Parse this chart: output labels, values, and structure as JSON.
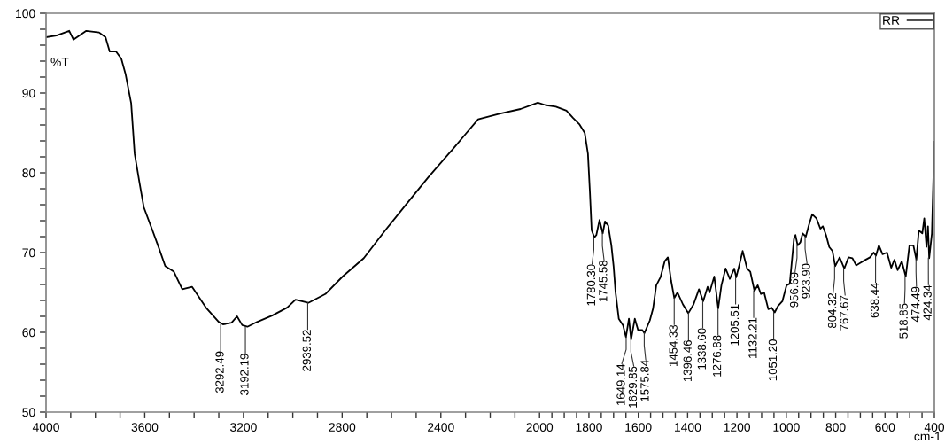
{
  "chart_data": {
    "type": "line",
    "ylabel": "%T",
    "xlabel": "cm-1",
    "xlim": [
      4000,
      400
    ],
    "ylim": [
      50,
      100
    ],
    "xticks": [
      4000,
      {
        "value": 3900,
        "label": null
      },
      {
        "value": 3800,
        "label": null
      },
      {
        "value": 3700,
        "label": null
      },
      3600,
      {
        "value": 3500,
        "label": null
      },
      {
        "value": 3400,
        "label": null
      },
      {
        "value": 3300,
        "label": null
      },
      3200,
      {
        "value": 3100,
        "label": null
      },
      {
        "value": 3000,
        "label": null
      },
      {
        "value": 2900,
        "label": null
      },
      2800,
      {
        "value": 2700,
        "label": null
      },
      {
        "value": 2600,
        "label": null
      },
      {
        "value": 2500,
        "label": null
      },
      2400,
      {
        "value": 2300,
        "label": null
      },
      {
        "value": 2200,
        "label": null
      },
      {
        "value": 2100,
        "label": null
      },
      2000,
      {
        "value": 1950,
        "label": null
      },
      {
        "value": 1900,
        "label": null
      },
      {
        "value": 1850,
        "label": null
      },
      1800,
      {
        "value": 1750,
        "label": null
      },
      {
        "value": 1700,
        "label": null
      },
      {
        "value": 1650,
        "label": null
      },
      1600,
      {
        "value": 1550,
        "label": null
      },
      {
        "value": 1500,
        "label": null
      },
      {
        "value": 1450,
        "label": null
      },
      1400,
      {
        "value": 1350,
        "label": null
      },
      {
        "value": 1300,
        "label": null
      },
      {
        "value": 1250,
        "label": null
      },
      1200,
      {
        "value": 1150,
        "label": null
      },
      {
        "value": 1100,
        "label": null
      },
      {
        "value": 1050,
        "label": null
      },
      1000,
      {
        "value": 950,
        "label": null
      },
      {
        "value": 900,
        "label": null
      },
      {
        "value": 850,
        "label": null
      },
      800,
      {
        "value": 750,
        "label": null
      },
      {
        "value": 700,
        "label": null
      },
      {
        "value": 650,
        "label": null
      },
      600,
      {
        "value": 550,
        "label": null
      },
      {
        "value": 500,
        "label": null
      },
      {
        "value": 450,
        "label": null
      },
      400
    ],
    "yticks": [
      50,
      {
        "value": 52,
        "label": null
      },
      {
        "value": 54,
        "label": null
      },
      {
        "value": 56,
        "label": null
      },
      {
        "value": 58,
        "label": null
      },
      60,
      {
        "value": 62,
        "label": null
      },
      {
        "value": 64,
        "label": null
      },
      {
        "value": 66,
        "label": null
      },
      {
        "value": 68,
        "label": null
      },
      70,
      {
        "value": 72,
        "label": null
      },
      {
        "value": 74,
        "label": null
      },
      {
        "value": 76,
        "label": null
      },
      {
        "value": 78,
        "label": null
      },
      80,
      {
        "value": 82,
        "label": null
      },
      {
        "value": 84,
        "label": null
      },
      {
        "value": 86,
        "label": null
      },
      {
        "value": 88,
        "label": null
      },
      90,
      {
        "value": 92,
        "label": null
      },
      {
        "value": 94,
        "label": null
      },
      {
        "value": 96,
        "label": null
      },
      {
        "value": 98,
        "label": null
      },
      100
    ],
    "legend": "top right",
    "marker": "none",
    "line_style": "solid",
    "grid": false,
    "series": [
      {
        "name": "RR",
        "color": "#000000",
        "x": [
          4000,
          3958,
          3906,
          3889,
          3837,
          3785,
          3759,
          3742,
          3716,
          3695,
          3678,
          3655,
          3641,
          3621,
          3604,
          3569,
          3543,
          3517,
          3482,
          3448,
          3408,
          3352,
          3300,
          3283,
          3248,
          3226,
          3205,
          3184,
          3145,
          3084,
          3023,
          2989,
          2937,
          2868,
          2798,
          2712,
          2625,
          2539,
          2452,
          2348,
          2296,
          2249,
          2163,
          2077,
          2007,
          1977,
          1934,
          1891,
          1865,
          1839,
          1817,
          1804,
          1796,
          1789,
          1778,
          1770,
          1757,
          1744,
          1735,
          1722,
          1709,
          1700,
          1692,
          1679,
          1662,
          1650,
          1638,
          1629,
          1614,
          1601,
          1584,
          1575,
          1553,
          1540,
          1527,
          1510,
          1493,
          1480,
          1467,
          1454,
          1441,
          1419,
          1397,
          1376,
          1354,
          1337,
          1319,
          1311,
          1292,
          1276,
          1263,
          1246,
          1229,
          1211,
          1203,
          1190,
          1177,
          1159,
          1146,
          1129,
          1116,
          1103,
          1090,
          1073,
          1060,
          1047,
          1034,
          1016,
          999,
          986,
          969,
          963,
          954,
          943,
          934,
          921,
          908,
          895,
          878,
          862,
          852,
          839,
          826,
          813,
          802,
          784,
          765,
          748,
          732,
          717,
          701,
          679,
          661,
          646,
          637,
          625,
          610,
          592,
          575,
          562,
          549,
          532,
          516,
          501,
          485,
          473,
          463,
          449,
          441,
          432,
          426,
          421,
          410,
          400
        ],
        "values": [
          97.0,
          97.2,
          97.8,
          96.7,
          97.8,
          97.6,
          97.0,
          95.2,
          95.2,
          94.3,
          92.4,
          88.7,
          82.4,
          78.7,
          75.7,
          72.8,
          70.6,
          68.3,
          67.6,
          65.4,
          65.7,
          63.1,
          61.3,
          61.0,
          61.2,
          62.0,
          60.9,
          60.7,
          61.3,
          62.1,
          63.1,
          64.1,
          63.7,
          64.8,
          67.0,
          69.3,
          72.8,
          76.1,
          79.4,
          83.1,
          85.0,
          86.7,
          87.4,
          88.0,
          88.8,
          88.5,
          88.3,
          87.8,
          86.9,
          86.1,
          85.0,
          82.4,
          77.6,
          72.8,
          71.9,
          72.2,
          74.1,
          72.4,
          73.9,
          73.4,
          70.9,
          68.3,
          65.0,
          61.7,
          60.9,
          59.4,
          61.7,
          59.1,
          61.7,
          60.3,
          60.3,
          59.9,
          61.5,
          63.0,
          65.9,
          66.9,
          68.9,
          69.4,
          66.5,
          64.3,
          65.0,
          63.5,
          62.4,
          63.5,
          65.4,
          63.9,
          65.7,
          65.0,
          67.0,
          63.0,
          65.9,
          68.0,
          66.7,
          68.0,
          66.9,
          68.5,
          70.2,
          68.0,
          67.6,
          65.2,
          65.9,
          64.8,
          65.0,
          62.9,
          63.1,
          62.5,
          63.3,
          63.9,
          65.9,
          66.1,
          71.7,
          72.2,
          70.9,
          71.3,
          72.4,
          72.0,
          73.5,
          74.8,
          74.3,
          73.0,
          73.3,
          72.2,
          70.7,
          70.2,
          68.3,
          69.4,
          68.0,
          69.4,
          69.3,
          68.4,
          68.7,
          69.1,
          69.4,
          70.0,
          69.6,
          70.9,
          69.8,
          70.0,
          68.1,
          69.1,
          67.8,
          68.9,
          67.0,
          70.9,
          70.9,
          69.1,
          72.8,
          72.4,
          74.3,
          70.7,
          73.3,
          69.3,
          72.4,
          83.9
        ]
      }
    ],
    "annotations": [
      {
        "text": "3292.49",
        "x": 3292.49,
        "y": 61.0
      },
      {
        "text": "3192.19",
        "x": 3192.19,
        "y": 60.7
      },
      {
        "text": "2939.52",
        "x": 2939.52,
        "y": 63.7
      },
      {
        "text": "1780.30",
        "x": 1780.3,
        "y": 71.9
      },
      {
        "text": "1745.58",
        "x": 1745.58,
        "y": 72.4
      },
      {
        "text": "1649.14",
        "x": 1649.14,
        "y": 59.4
      },
      {
        "text": "1629.85",
        "x": 1629.85,
        "y": 59.1
      },
      {
        "text": "1575.84",
        "x": 1575.84,
        "y": 59.9
      },
      {
        "text": "1454.33",
        "x": 1454.33,
        "y": 64.3
      },
      {
        "text": "1396.46",
        "x": 1396.46,
        "y": 62.4
      },
      {
        "text": "1338.60",
        "x": 1338.6,
        "y": 63.9
      },
      {
        "text": "1276.88",
        "x": 1276.88,
        "y": 63.0
      },
      {
        "text": "1205.51",
        "x": 1205.51,
        "y": 66.9
      },
      {
        "text": "1132.21",
        "x": 1132.21,
        "y": 65.2
      },
      {
        "text": "1051.20",
        "x": 1051.2,
        "y": 62.5
      },
      {
        "text": "956.69",
        "x": 956.69,
        "y": 70.9
      },
      {
        "text": "923.90",
        "x": 923.9,
        "y": 72.0
      },
      {
        "text": "804.32",
        "x": 804.32,
        "y": 68.3
      },
      {
        "text": "767.67",
        "x": 767.67,
        "y": 68.0
      },
      {
        "text": "638.44",
        "x": 638.44,
        "y": 69.6
      },
      {
        "text": "518.85",
        "x": 518.85,
        "y": 67.0
      },
      {
        "text": "474.49",
        "x": 474.49,
        "y": 69.1
      },
      {
        "text": "424.34",
        "x": 424.34,
        "y": 69.3
      }
    ]
  }
}
